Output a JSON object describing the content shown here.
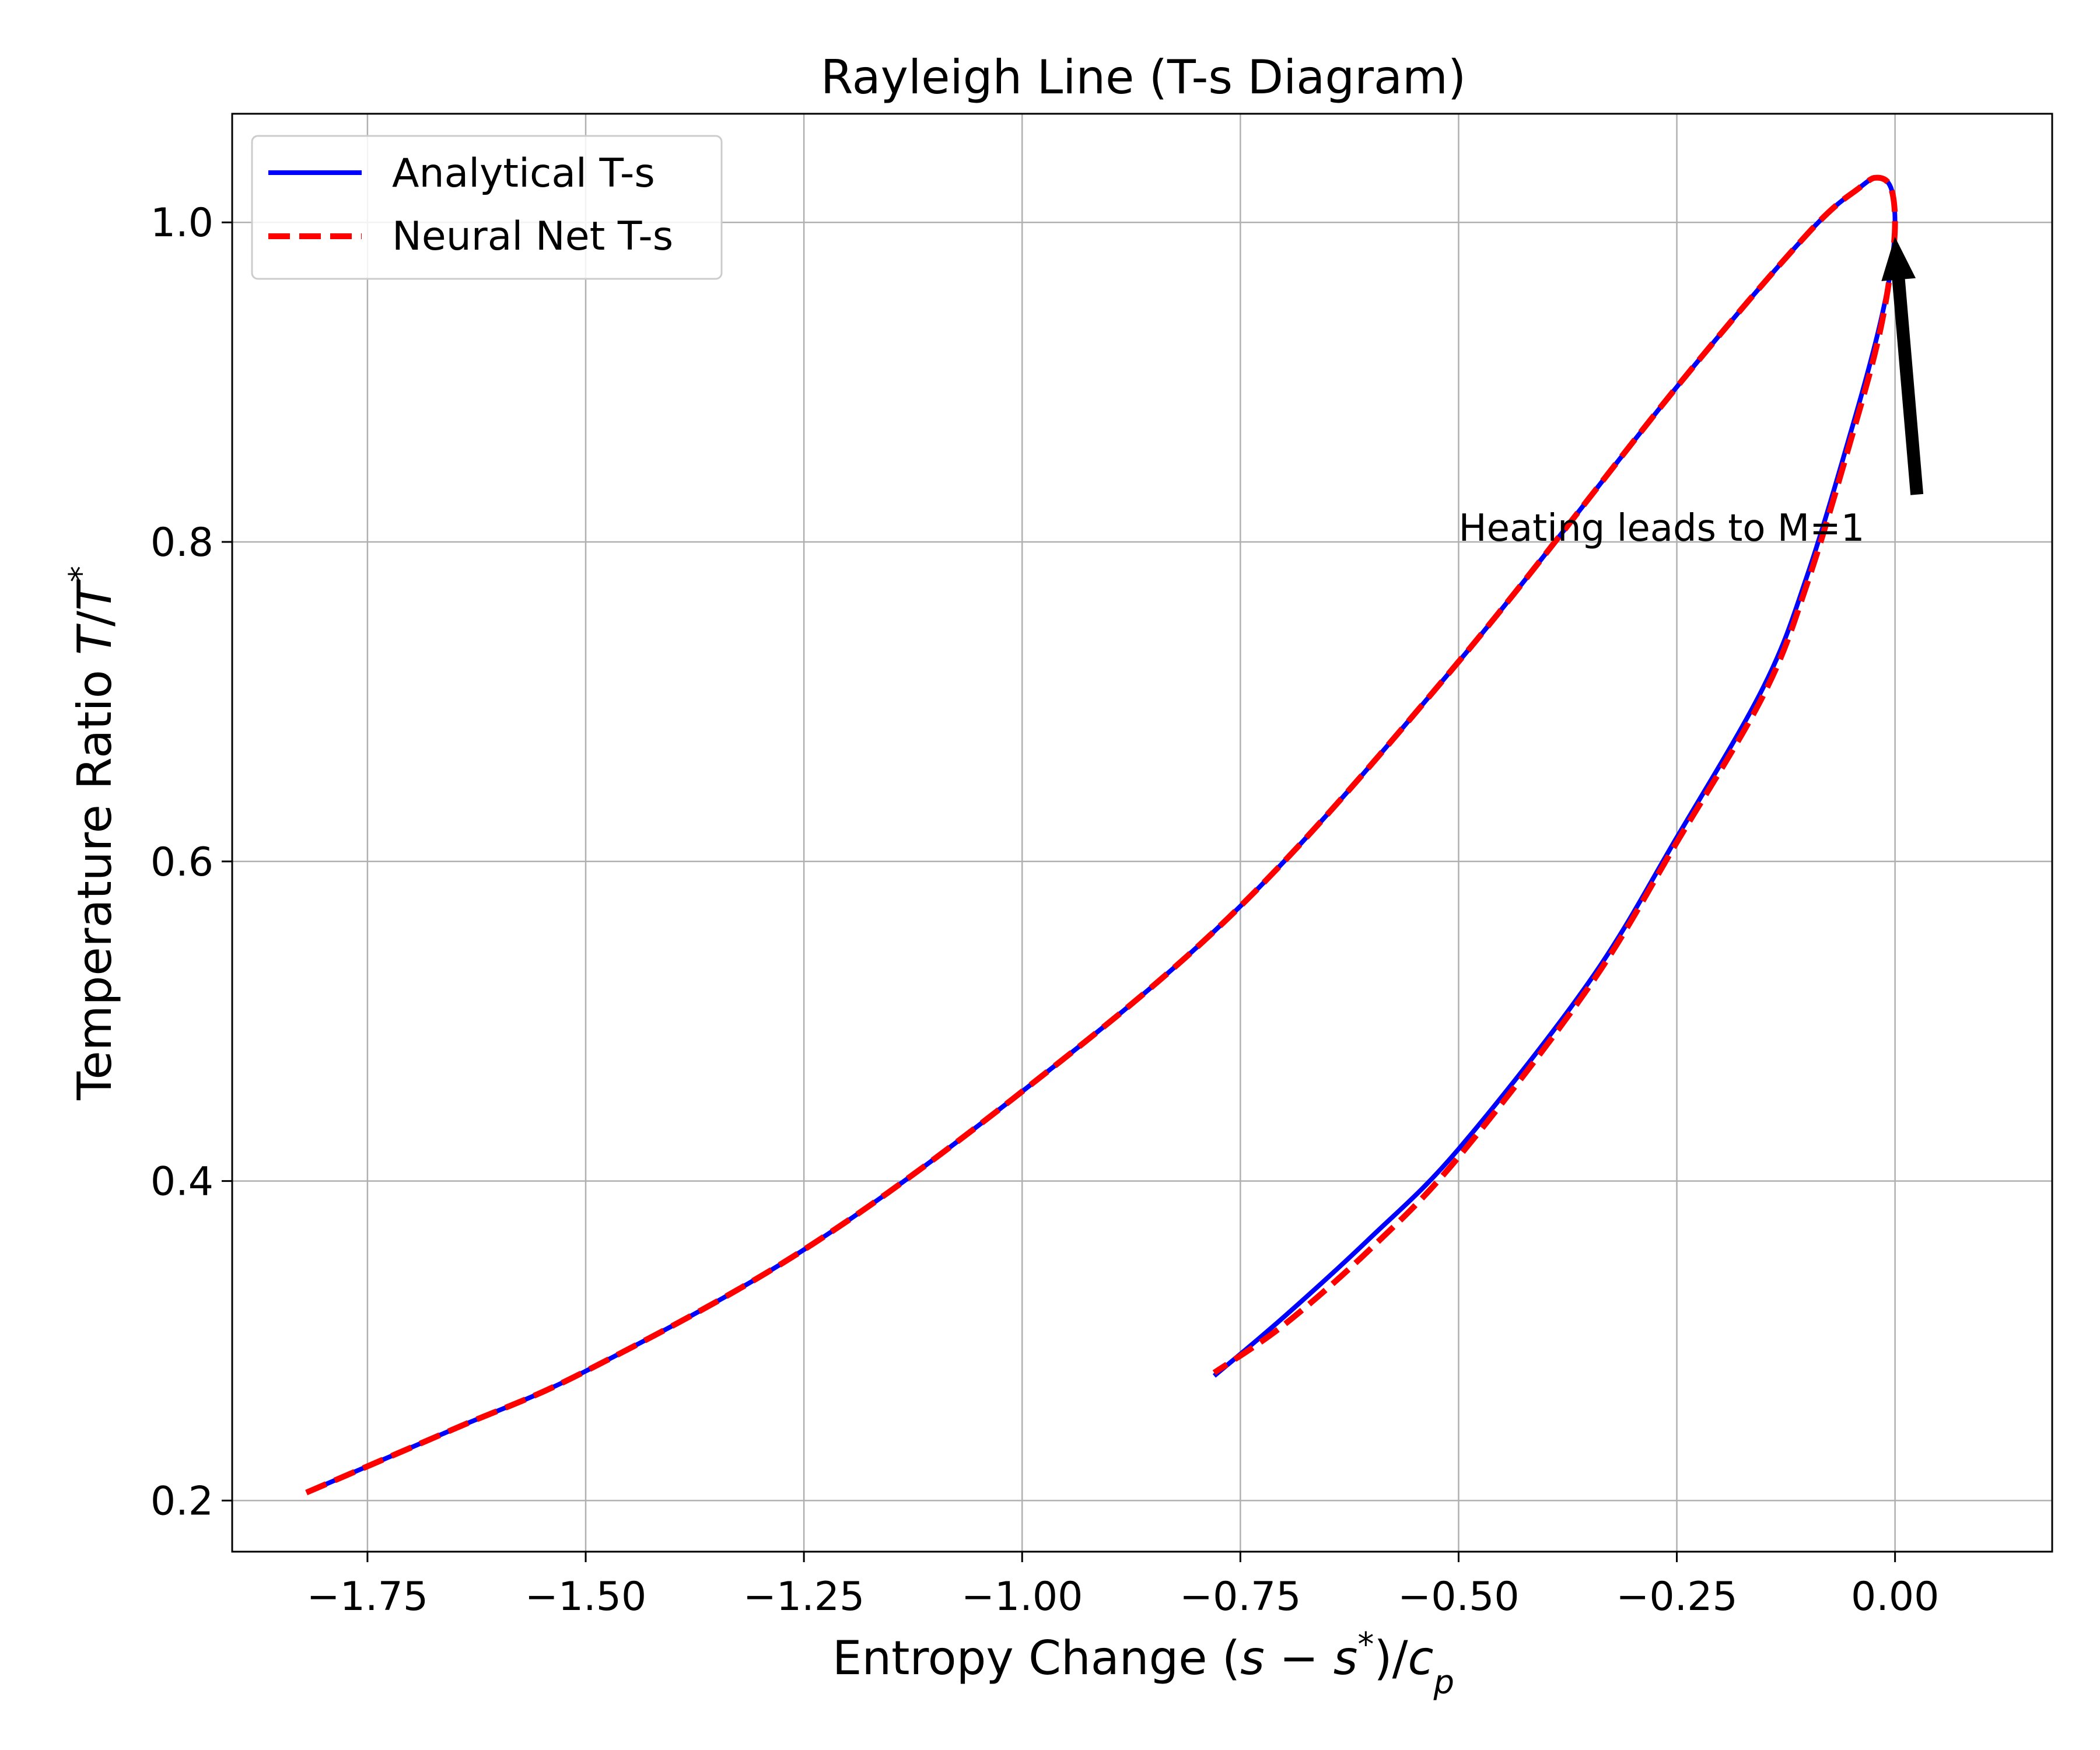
{
  "chart_data": {
    "type": "line",
    "title": "Rayleigh Line (T-s Diagram)",
    "xlabel": {
      "prefix": "Entropy Change (",
      "s1": "s",
      "minus": " − ",
      "s2": "s",
      "star": "*",
      "mid": ")/",
      "c": "c",
      "p": "p"
    },
    "ylabel": {
      "prefix": "Temperature Ratio ",
      "T1": "T",
      "slash": "/",
      "T2": "T",
      "star": "*"
    },
    "xlim": [
      -1.905,
      0.18
    ],
    "ylim": [
      0.168,
      1.068
    ],
    "xticks": [
      -1.75,
      -1.5,
      -1.25,
      -1.0,
      -0.75,
      -0.5,
      -0.25,
      0.0
    ],
    "xtick_labels": [
      "−1.75",
      "−1.50",
      "−1.25",
      "−1.00",
      "−0.75",
      "−0.50",
      "−0.25",
      "0.00"
    ],
    "yticks": [
      0.2,
      0.4,
      0.6,
      0.8,
      1.0
    ],
    "ytick_labels": [
      "0.2",
      "0.4",
      "0.6",
      "0.8",
      "1.0"
    ],
    "grid": true,
    "legend_position": "upper left",
    "series": [
      {
        "name": "Analytical T-s",
        "color": "#0000ff",
        "style": "solid",
        "points": [
          [
            -1.82,
            0.205
          ],
          [
            -1.65,
            0.245
          ],
          [
            -1.5,
            0.281
          ],
          [
            -1.25,
            0.357
          ],
          [
            -1.0,
            0.456
          ],
          [
            -0.75,
            0.572
          ],
          [
            -0.5,
            0.725
          ],
          [
            -0.25,
            0.897
          ],
          [
            -0.1,
            0.993
          ],
          [
            -0.04,
            1.022
          ],
          [
            -0.02,
            1.028
          ],
          [
            -0.005,
            1.022
          ],
          [
            0.0,
            1.0
          ],
          [
            -0.005,
            0.97
          ],
          [
            -0.02,
            0.93
          ],
          [
            -0.05,
            0.87
          ],
          [
            -0.1,
            0.78
          ],
          [
            -0.15,
            0.71
          ],
          [
            -0.25,
            0.615
          ],
          [
            -0.35,
            0.525
          ],
          [
            -0.5,
            0.42
          ],
          [
            -0.6,
            0.365
          ],
          [
            -0.7,
            0.315
          ],
          [
            -0.78,
            0.278
          ]
        ]
      },
      {
        "name": "Neural Net T-s",
        "color": "#ff0000",
        "style": "dashed",
        "points": [
          [
            -1.82,
            0.205
          ],
          [
            -1.65,
            0.245
          ],
          [
            -1.5,
            0.281
          ],
          [
            -1.25,
            0.357
          ],
          [
            -1.0,
            0.456
          ],
          [
            -0.75,
            0.572
          ],
          [
            -0.5,
            0.725
          ],
          [
            -0.25,
            0.897
          ],
          [
            -0.1,
            0.993
          ],
          [
            -0.04,
            1.022
          ],
          [
            -0.02,
            1.028
          ],
          [
            -0.005,
            1.022
          ],
          [
            0.0,
            1.0
          ],
          [
            -0.005,
            0.97
          ],
          [
            -0.02,
            0.925
          ],
          [
            -0.05,
            0.865
          ],
          [
            -0.1,
            0.775
          ],
          [
            -0.15,
            0.705
          ],
          [
            -0.25,
            0.612
          ],
          [
            -0.35,
            0.522
          ],
          [
            -0.5,
            0.415
          ],
          [
            -0.6,
            0.358
          ],
          [
            -0.7,
            0.31
          ],
          [
            -0.78,
            0.28
          ]
        ]
      }
    ],
    "annotation": {
      "text": "Heating leads to M=1",
      "text_anchor_point": [
        -0.5,
        0.8
      ],
      "arrow_tail": [
        0.025,
        0.83
      ],
      "arrow_head": [
        0.0,
        0.99
      ],
      "arrow_color": "#000000"
    }
  }
}
